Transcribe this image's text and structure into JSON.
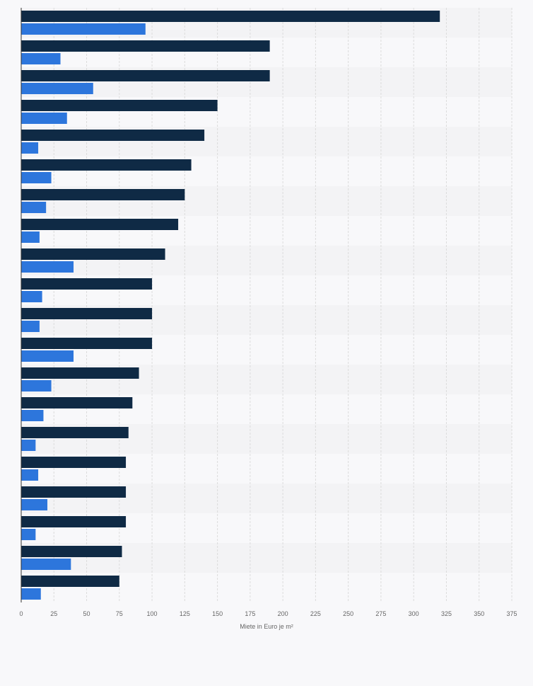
{
  "chart_data": {
    "type": "bar",
    "orientation": "horizontal",
    "title": "",
    "xlabel": "Miete in Euro je m²",
    "ylabel": "",
    "xlim": [
      0,
      375
    ],
    "xticks": [
      0,
      25,
      50,
      75,
      100,
      125,
      150,
      175,
      200,
      225,
      250,
      275,
      300,
      325,
      350,
      375
    ],
    "grid": true,
    "legend": "none",
    "categories": [
      "",
      "",
      "",
      "",
      "",
      "",
      "",
      "",
      "",
      "",
      "",
      "",
      "",
      "",
      "",
      "",
      "",
      "",
      "",
      ""
    ],
    "series": [
      {
        "color": "#0f2a45",
        "values": [
          320,
          190,
          190,
          150,
          140,
          130,
          125,
          120,
          110,
          100,
          100,
          100,
          90,
          85,
          82,
          80,
          80,
          80,
          77,
          75
        ]
      },
      {
        "color": "#2d76dc",
        "values": [
          95,
          30,
          55,
          35,
          13,
          23,
          19,
          14,
          40,
          16,
          14,
          40,
          23,
          17,
          11,
          13,
          20,
          11,
          38,
          15
        ]
      }
    ]
  },
  "colors": {
    "band_dark": "#f3f3f5",
    "band_light": "#f8f8fa",
    "gridline": "#dcdcdc",
    "axis_line": "#333333",
    "text": "#666666"
  }
}
